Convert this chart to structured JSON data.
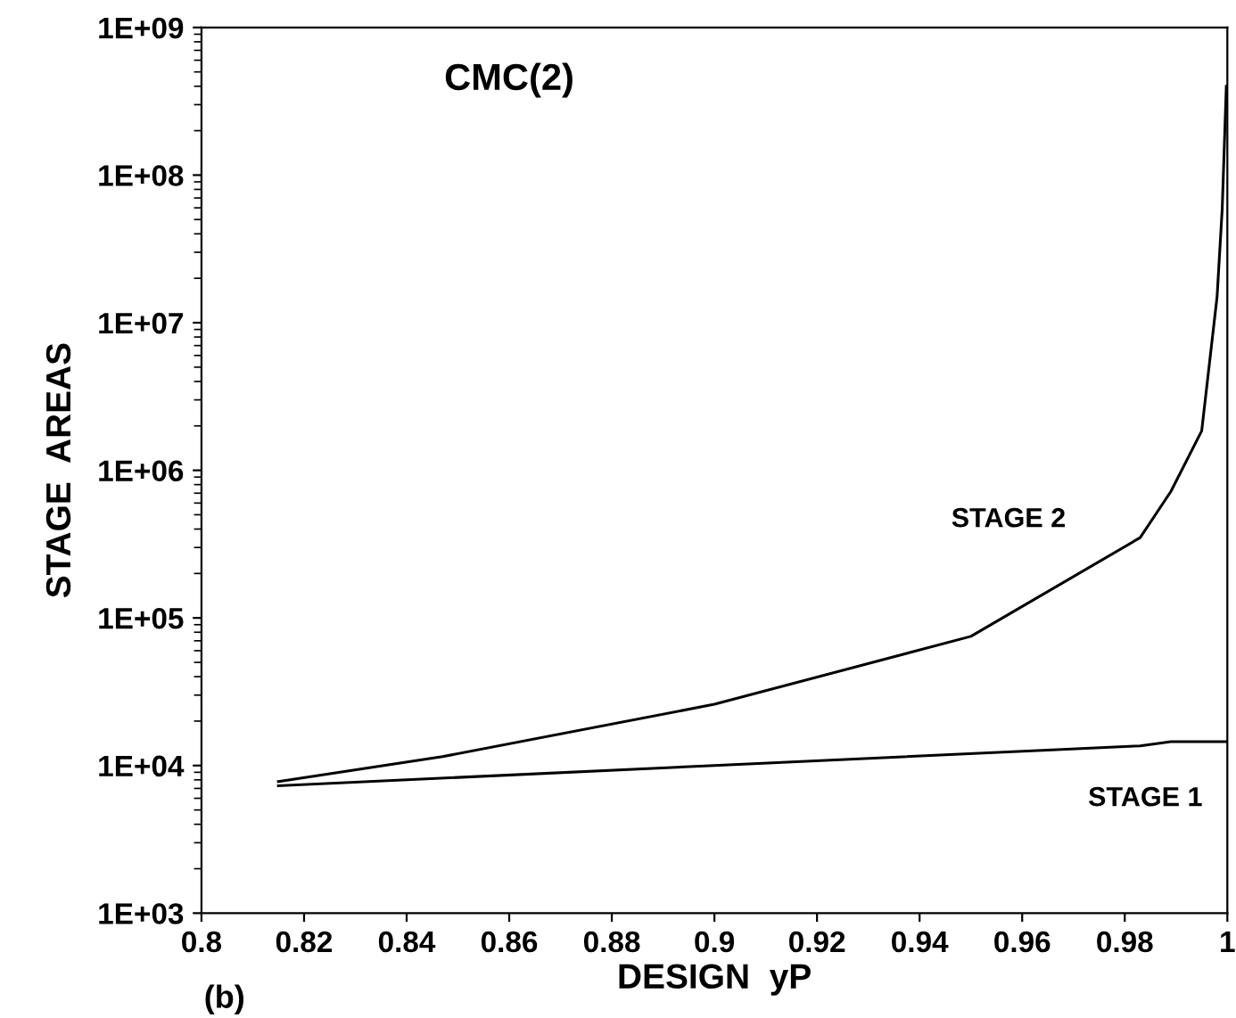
{
  "chart_data": {
    "type": "line",
    "title": "CMC(2)",
    "xlabel": "DESIGN  yP",
    "ylabel": "STAGE  AREAS",
    "annotations": [
      "(b)"
    ],
    "log": "y",
    "grid": false,
    "legend": false,
    "marker": "none",
    "line_style": "solid",
    "xlim": [
      0.8,
      1.0
    ],
    "xticks": [
      0.8,
      0.82,
      0.84,
      0.86,
      0.88,
      0.9,
      0.92,
      0.94,
      0.96,
      0.98,
      {
        "value": 1.0,
        "label": "1"
      }
    ],
    "ylim": [
      1000,
      1000000000
    ],
    "yticks": [
      {
        "value": 1000,
        "label": "1E+03"
      },
      {
        "value": 10000,
        "label": "1E+04"
      },
      {
        "value": 100000,
        "label": "1E+05"
      },
      {
        "value": 1000000,
        "label": "1E+06"
      },
      {
        "value": 10000000,
        "label": "1E+07"
      },
      {
        "value": 100000000,
        "label": "1E+08"
      },
      {
        "value": 1000000000,
        "label": "1E+09"
      }
    ],
    "series": [
      {
        "name": "STAGE 2",
        "color": "#000000",
        "x": [
          0.815,
          0.847,
          0.9,
          0.95,
          0.983,
          0.989,
          0.995,
          0.998,
          0.999,
          0.9998
        ],
        "values": [
          7800,
          11500,
          26000,
          75000,
          350000,
          720000,
          1850000,
          15000000,
          59000000,
          400000000
        ]
      },
      {
        "name": "STAGE 1",
        "color": "#000000",
        "x": [
          0.815,
          0.9,
          0.983,
          0.989,
          1.0
        ],
        "values": [
          7300,
          10000,
          13600,
          14500,
          14500
        ]
      }
    ]
  }
}
